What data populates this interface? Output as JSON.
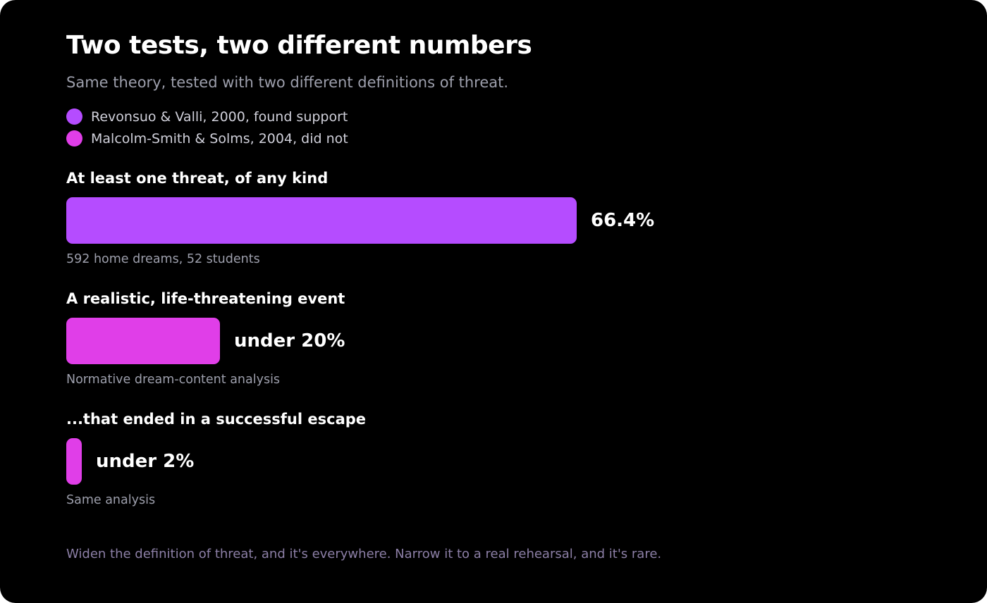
{
  "title": "Two tests, two different numbers",
  "subtitle": "Same theory, tested with two different definitions of threat.",
  "footer": "Widen the definition of threat, and it's everywhere. Narrow it to a real rehearsal, and it's rare.",
  "colors": {
    "background": "#000000",
    "revonsuo": "#b54cff",
    "malcolm": "#e03ee8"
  },
  "chart_data": {
    "type": "bar",
    "orientation": "horizontal",
    "title": "Two tests, two different numbers",
    "subtitle": "Same theory, tested with two different definitions of threat.",
    "unit": "%",
    "xlim": [
      0,
      100
    ],
    "grid": false,
    "legend_position": "top-left",
    "legend": [
      {
        "label": "Revonsuo & Valli, 2000, found support",
        "color": "#b54cff"
      },
      {
        "label": "Malcolm-Smith & Solms, 2004, did not",
        "color": "#e03ee8"
      }
    ],
    "bars": [
      {
        "category": "At least one threat, of any kind",
        "value": 66.4,
        "value_label": "66.4%",
        "note": "592 home dreams, 52 students",
        "series": 0
      },
      {
        "category": "A realistic, life-threatening event",
        "value": 20,
        "value_label": "under 20%",
        "note": "Normative dream-content analysis",
        "series": 1
      },
      {
        "category": "...that ended in a successful escape",
        "value": 2,
        "value_label": "under 2%",
        "note": "Same analysis",
        "series": 1
      }
    ]
  }
}
